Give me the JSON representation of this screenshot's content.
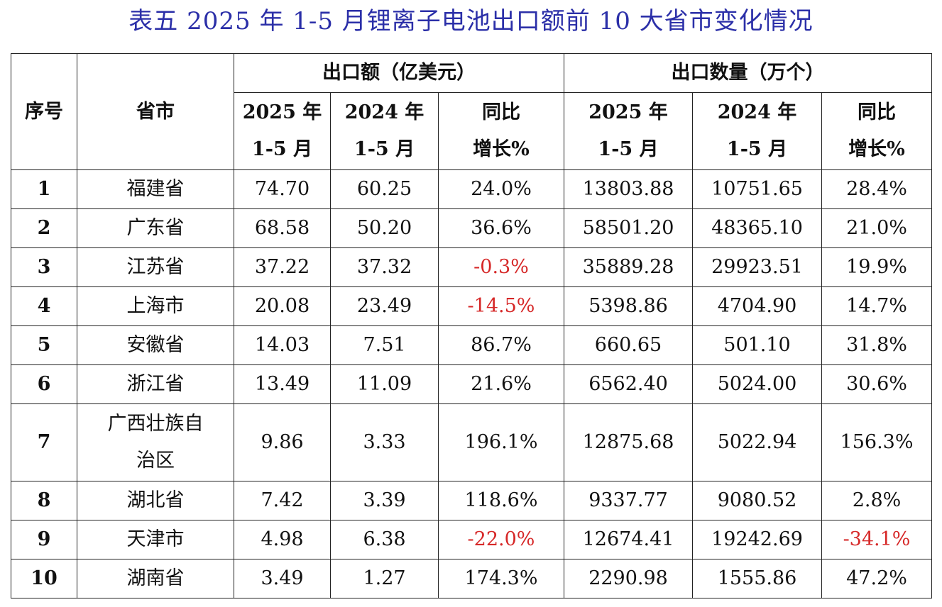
{
  "title": "表五 2025 年 1-5 月锂离子电池出口额前 10 大省市变化情况",
  "colors": {
    "title": "#2b2fa8",
    "negative": "#d62828"
  },
  "header": {
    "seq": "序号",
    "province": "省市",
    "group_value": "出口额（亿美元）",
    "group_qty": "出口数量（万个）",
    "y2025_line1": "2025 年",
    "y2025_line2": "1-5 月",
    "y2024_line1": "2024 年",
    "y2024_line2": "1-5 月",
    "yoy_line1": "同比",
    "yoy_line2": "增长%"
  },
  "rows": [
    {
      "seq": "1",
      "province": "福建省",
      "val2025": "74.70",
      "val2024": "60.25",
      "val_yoy": "24.0%",
      "qty2025": "13803.88",
      "qty2024": "10751.65",
      "qty_yoy": "28.4%"
    },
    {
      "seq": "2",
      "province": "广东省",
      "val2025": "68.58",
      "val2024": "50.20",
      "val_yoy": "36.6%",
      "qty2025": "58501.20",
      "qty2024": "48365.10",
      "qty_yoy": "21.0%"
    },
    {
      "seq": "3",
      "province": "江苏省",
      "val2025": "37.22",
      "val2024": "37.32",
      "val_yoy": "-0.3%",
      "qty2025": "35889.28",
      "qty2024": "29923.51",
      "qty_yoy": "19.9%"
    },
    {
      "seq": "4",
      "province": "上海市",
      "val2025": "20.08",
      "val2024": "23.49",
      "val_yoy": "-14.5%",
      "qty2025": "5398.86",
      "qty2024": "4704.90",
      "qty_yoy": "14.7%"
    },
    {
      "seq": "5",
      "province": "安徽省",
      "val2025": "14.03",
      "val2024": "7.51",
      "val_yoy": "86.7%",
      "qty2025": "660.65",
      "qty2024": "501.10",
      "qty_yoy": "31.8%"
    },
    {
      "seq": "6",
      "province": "浙江省",
      "val2025": "13.49",
      "val2024": "11.09",
      "val_yoy": "21.6%",
      "qty2025": "6562.40",
      "qty2024": "5024.00",
      "qty_yoy": "30.6%"
    },
    {
      "seq": "7",
      "province_line1": "广西壮族自",
      "province_line2": "治区",
      "val2025": "9.86",
      "val2024": "3.33",
      "val_yoy": "196.1%",
      "qty2025": "12875.68",
      "qty2024": "5022.94",
      "qty_yoy": "156.3%"
    },
    {
      "seq": "8",
      "province": "湖北省",
      "val2025": "7.42",
      "val2024": "3.39",
      "val_yoy": "118.6%",
      "qty2025": "9337.77",
      "qty2024": "9080.52",
      "qty_yoy": "2.8%"
    },
    {
      "seq": "9",
      "province": "天津市",
      "val2025": "4.98",
      "val2024": "6.38",
      "val_yoy": "-22.0%",
      "qty2025": "12674.41",
      "qty2024": "19242.69",
      "qty_yoy": "-34.1%"
    },
    {
      "seq": "10",
      "province": "湖南省",
      "val2025": "3.49",
      "val2024": "1.27",
      "val_yoy": "174.3%",
      "qty2025": "2290.98",
      "qty2024": "1555.86",
      "qty_yoy": "47.2%"
    }
  ]
}
